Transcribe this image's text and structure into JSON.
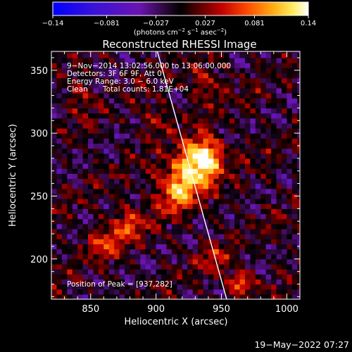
{
  "chart_data": {
    "type": "heatmap",
    "title": "Reconstructed RHESSI Image",
    "xlabel": "Heliocentric X (arcsec)",
    "ylabel": "Heliocentric Y (arcsec)",
    "xlim": [
      820,
      1010
    ],
    "ylim": [
      168,
      365
    ],
    "x_ticks": [
      850,
      900,
      950,
      1000
    ],
    "y_ticks": [
      200,
      250,
      300,
      350
    ],
    "colorbar": {
      "min": -0.14,
      "max": 0.14,
      "tick_values": [
        -0.14,
        -0.081,
        -0.027,
        0.027,
        0.081,
        0.14
      ],
      "tick_labels": [
        "−0.14",
        "−0.081",
        "−0.027",
        "0.027",
        "0.081",
        "0.14"
      ],
      "unit_label_prefix": "(photons cm",
      "unit_sup_1": "−2",
      "unit_mid_1": " s",
      "unit_sup_2": "−1",
      "unit_mid_2": " asec",
      "unit_sup_3": "−2",
      "unit_suffix": ")"
    },
    "annotations": {
      "time_range": "9−Nov−2014 13:02:56.000 to 13:06:00.000",
      "detectors": "Detectors: 3F 6F 9F, Att 0",
      "energy_range": "Energy Range: 3.0 − 6.0 keV",
      "clean_label": "Clean",
      "total_counts": "Total counts: 1.81E+04",
      "peak": "Position of Peak = [937,282]"
    },
    "peak": {
      "x": 937,
      "y": 282
    },
    "sources": [
      {
        "x": 937,
        "y": 282,
        "amp": 0.14,
        "sigma": 10
      },
      {
        "x": 924,
        "y": 266,
        "amp": 0.11,
        "sigma": 12
      },
      {
        "x": 912,
        "y": 250,
        "amp": 0.06,
        "sigma": 10
      },
      {
        "x": 965,
        "y": 181,
        "amp": 0.11,
        "sigma": 6
      },
      {
        "x": 942,
        "y": 200,
        "amp": 0.05,
        "sigma": 8
      },
      {
        "x": 880,
        "y": 228,
        "amp": 0.07,
        "sigma": 9
      },
      {
        "x": 858,
        "y": 213,
        "amp": 0.06,
        "sigma": 9
      },
      {
        "x": 840,
        "y": 330,
        "amp": 0.04,
        "sigma": 8
      },
      {
        "x": 940,
        "y": 340,
        "amp": 0.05,
        "sigma": 10
      },
      {
        "x": 903,
        "y": 312,
        "amp": 0.04,
        "sigma": 9
      }
    ],
    "limb_line": {
      "x": [
        901,
        954
      ],
      "y": [
        365,
        168
      ]
    }
  },
  "footer": {
    "date": "19−May−2022 07:27"
  }
}
